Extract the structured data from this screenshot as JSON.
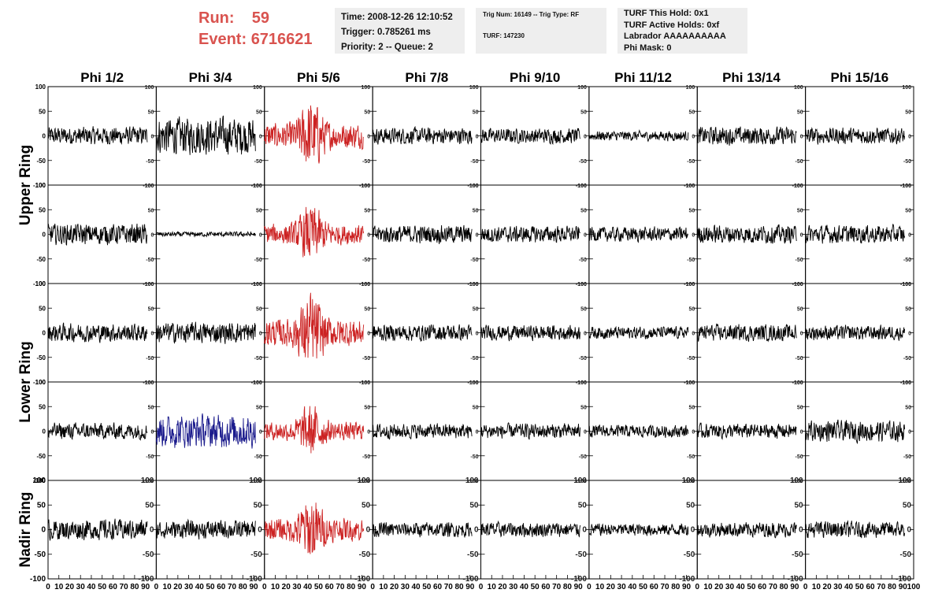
{
  "header": {
    "run_label": "Run:",
    "run_value": "59",
    "event_label": "Event:",
    "event_value": "6716621",
    "accent_color": "#d9534f"
  },
  "info_panels": {
    "time": "Time: 2008-12-26 12:10:52",
    "trigger": "Trigger: 0.785261 ms",
    "priority": "Priority: 2 -- Queue: 2",
    "trig_num": "Trig Num: 16149 -- Trig Type: RF",
    "turf": "TURF: 147230",
    "turf_this_hold": "TURF This Hold: 0x1",
    "turf_active_holds": "TURF Active Holds: 0xf",
    "labrador": "Labrador AAAAAAAAAA",
    "phi_mask": "Phi Mask: 0"
  },
  "chart_data": {
    "type": "line",
    "columns": [
      "Phi 1/2",
      "Phi 3/4",
      "Phi 5/6",
      "Phi 7/8",
      "Phi 9/10",
      "Phi 11/12",
      "Phi 13/14",
      "Phi 15/16"
    ],
    "row_groups": [
      {
        "label": "Upper Ring",
        "rows": [
          0,
          1
        ]
      },
      {
        "label": "Lower Ring",
        "rows": [
          2,
          3
        ]
      },
      {
        "label": "Nadir Ring",
        "rows": [
          4
        ]
      }
    ],
    "xlim": [
      0,
      100
    ],
    "ylim": [
      -100,
      100
    ],
    "x_ticks": [
      "0",
      "10",
      "20",
      "30",
      "40",
      "50",
      "60",
      "70",
      "80",
      "90",
      "100"
    ],
    "y_ticks": [
      "100",
      "50",
      "0",
      "-50",
      "-100"
    ],
    "colors": {
      "normal": "#000000",
      "triggered": "#cc2222",
      "highlight": "#1a1a8c"
    },
    "panel_amplitude": [
      [
        22,
        45,
        55,
        20,
        18,
        12,
        22,
        20
      ],
      [
        25,
        6,
        45,
        22,
        20,
        18,
        22,
        22
      ],
      [
        22,
        25,
        60,
        20,
        18,
        15,
        20,
        18
      ],
      [
        20,
        40,
        40,
        18,
        18,
        15,
        18,
        25
      ],
      [
        25,
        22,
        50,
        18,
        18,
        15,
        18,
        20
      ]
    ],
    "panel_color": [
      [
        "normal",
        "normal",
        "triggered",
        "normal",
        "normal",
        "normal",
        "normal",
        "normal"
      ],
      [
        "normal",
        "normal",
        "triggered",
        "normal",
        "normal",
        "normal",
        "normal",
        "normal"
      ],
      [
        "normal",
        "normal",
        "triggered",
        "normal",
        "normal",
        "normal",
        "normal",
        "normal"
      ],
      [
        "normal",
        "highlight",
        "triggered",
        "normal",
        "normal",
        "normal",
        "normal",
        "normal"
      ],
      [
        "normal",
        "normal",
        "triggered",
        "normal",
        "normal",
        "normal",
        "normal",
        "normal"
      ]
    ],
    "waveform_end_x": 92,
    "pulse_center_x": 43
  }
}
